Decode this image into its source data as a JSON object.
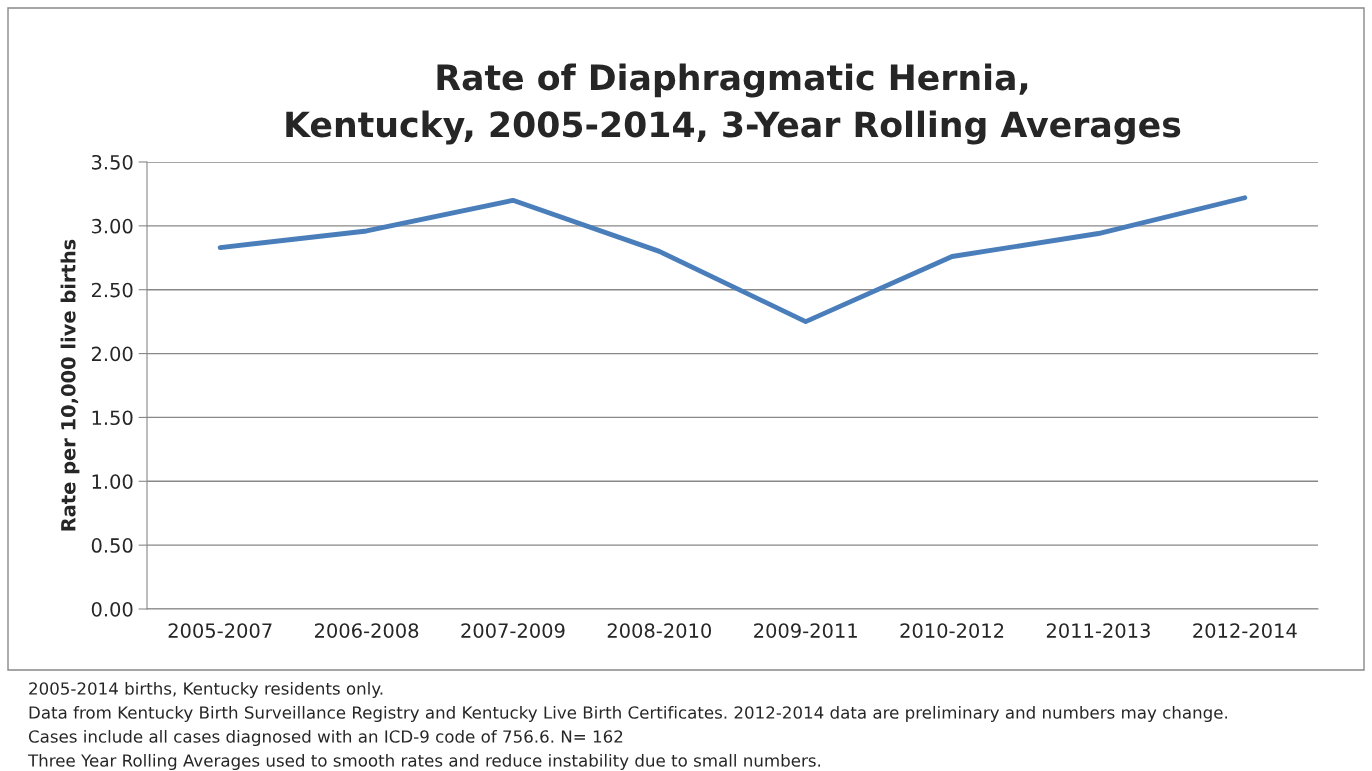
{
  "chart_data": {
    "type": "line",
    "title": "Rate of Diaphragmatic Hernia,\nKentucky, 2005-2014, 3-Year Rolling Averages",
    "ylabel": "Rate per 10,000 live births",
    "categories": [
      "2005-2007",
      "2006-2008",
      "2007-2009",
      "2008-2010",
      "2009-2011",
      "2010-2012",
      "2011-2013",
      "2012-2014"
    ],
    "series": [
      {
        "color": "#4a7ebb",
        "values": [
          2.83,
          2.96,
          3.2,
          2.8,
          2.25,
          2.76,
          2.94,
          3.22
        ]
      }
    ],
    "ylim": [
      0,
      3.5
    ],
    "yticks": [
      {
        "value": 0,
        "label": "0.00"
      },
      {
        "value": 0.5,
        "label": "0.50"
      },
      {
        "value": 1,
        "label": "1.00"
      },
      {
        "value": 1.5,
        "label": "1.50"
      },
      {
        "value": 2,
        "label": "2.00"
      },
      {
        "value": 2.5,
        "label": "2.50"
      },
      {
        "value": 3,
        "label": "3.00"
      },
      {
        "value": 3.5,
        "label": "3.50"
      }
    ],
    "grid": "y",
    "legend": false,
    "marker": "none",
    "line_style": "solid",
    "annotations": [
      "2005-2014 births, Kentucky residents only.",
      "Data from Kentucky Birth Surveillance Registry and Kentucky Live Birth Certificates. 2012-2014 data are preliminary and numbers may change.",
      "Cases include all cases diagnosed with an ICD-9 code of 756.6. N= 162",
      "Three Year Rolling Averages used to smooth rates and reduce instability due to small numbers."
    ]
  }
}
